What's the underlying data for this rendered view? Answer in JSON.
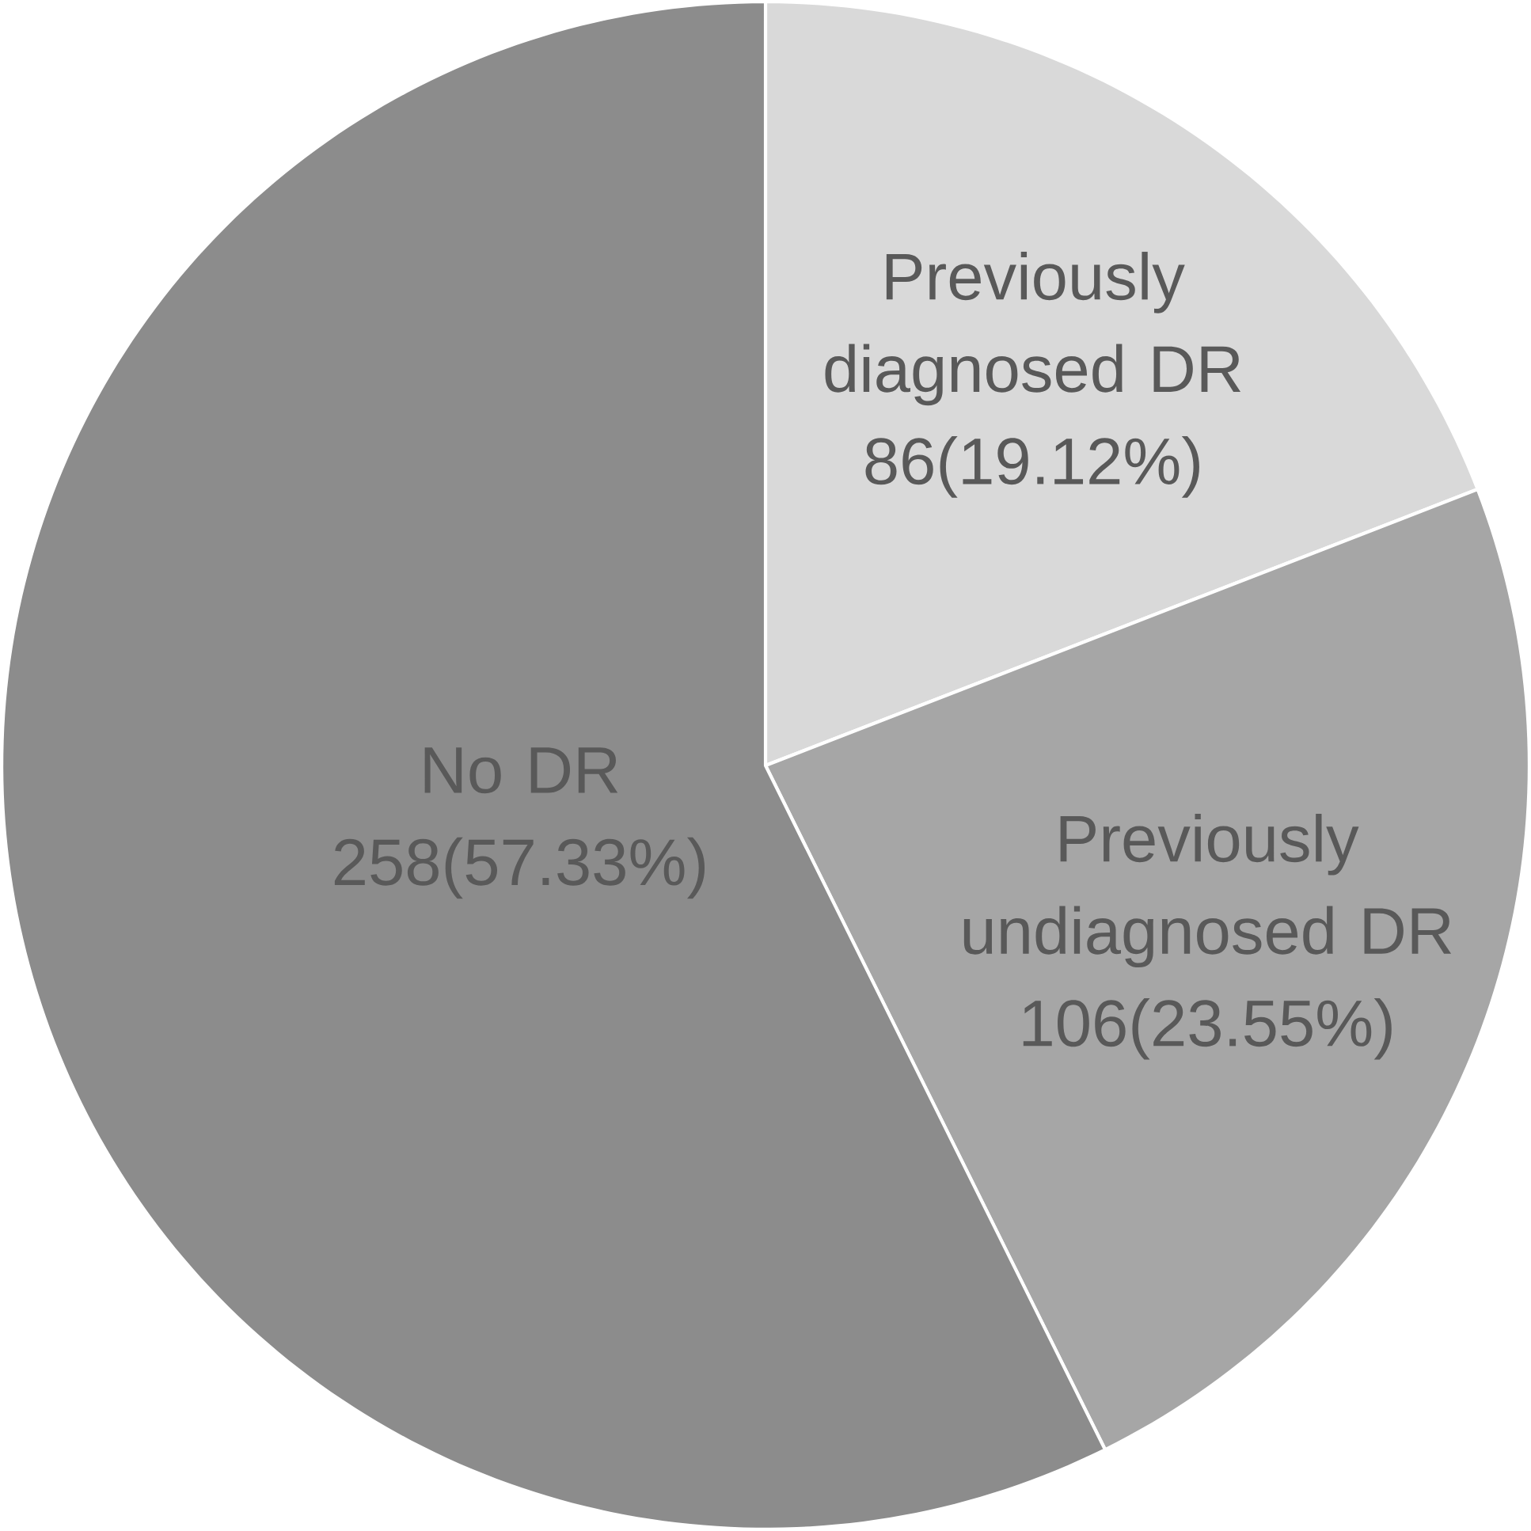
{
  "chart_data": {
    "type": "pie",
    "categories": [
      "Previously diagnosed DR",
      "Previously undiagnosed DR",
      "No DR"
    ],
    "values": [
      86,
      106,
      258
    ],
    "value_labels": [
      "86(19.12%)",
      "106(23.55%)",
      "258(57.33%)"
    ],
    "colors": [
      "#d9d9d9",
      "#a6a6a6",
      "#8c8c8c"
    ]
  }
}
